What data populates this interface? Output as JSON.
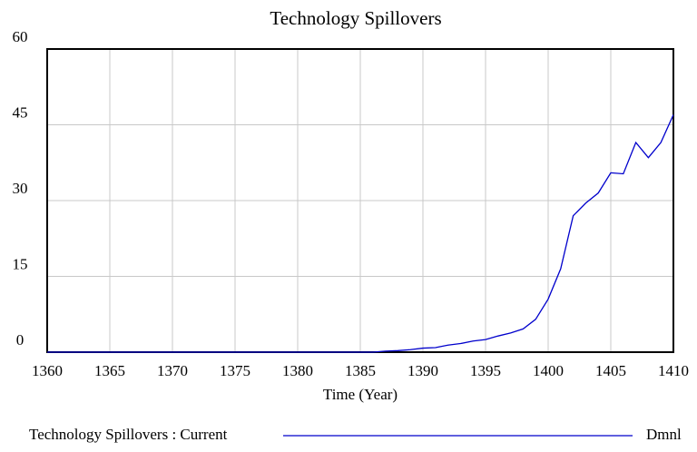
{
  "chart_data": {
    "type": "line",
    "title": "Technology Spillovers",
    "x_label": "Time (Year)",
    "x": [
      1360,
      1361,
      1362,
      1363,
      1364,
      1365,
      1366,
      1367,
      1368,
      1369,
      1370,
      1371,
      1372,
      1373,
      1374,
      1375,
      1376,
      1377,
      1378,
      1379,
      1380,
      1381,
      1382,
      1383,
      1384,
      1385,
      1386,
      1387,
      1388,
      1389,
      1390,
      1391,
      1392,
      1393,
      1394,
      1395,
      1396,
      1397,
      1398,
      1399,
      1400,
      1401,
      1402,
      1403,
      1404,
      1405,
      1406,
      1407,
      1408,
      1409,
      1410
    ],
    "series": [
      {
        "name": "Technology Spillovers : Current",
        "unit": "Dmnl",
        "color": "#0000cc",
        "values": [
          0,
          0,
          0,
          0,
          0,
          0,
          0,
          0,
          0,
          0,
          0,
          0,
          0,
          0,
          0,
          0,
          0,
          0,
          0,
          0,
          0,
          0,
          0,
          0,
          0,
          0,
          0,
          0.2,
          0.3,
          0.5,
          0.8,
          0.9,
          1.4,
          1.7,
          2.2,
          2.5,
          3.2,
          3.8,
          4.6,
          6.5,
          10.5,
          16.5,
          27,
          29.5,
          31.5,
          35.5,
          35.3,
          41.5,
          38.5,
          41.5,
          47
        ]
      }
    ],
    "xlim": [
      1360,
      1410
    ],
    "xticks": [
      1360,
      1365,
      1370,
      1375,
      1380,
      1385,
      1390,
      1395,
      1400,
      1405,
      1410
    ],
    "ylim": [
      0,
      60
    ],
    "yticks": [
      0,
      15,
      30,
      45,
      60
    ],
    "grid": true
  }
}
